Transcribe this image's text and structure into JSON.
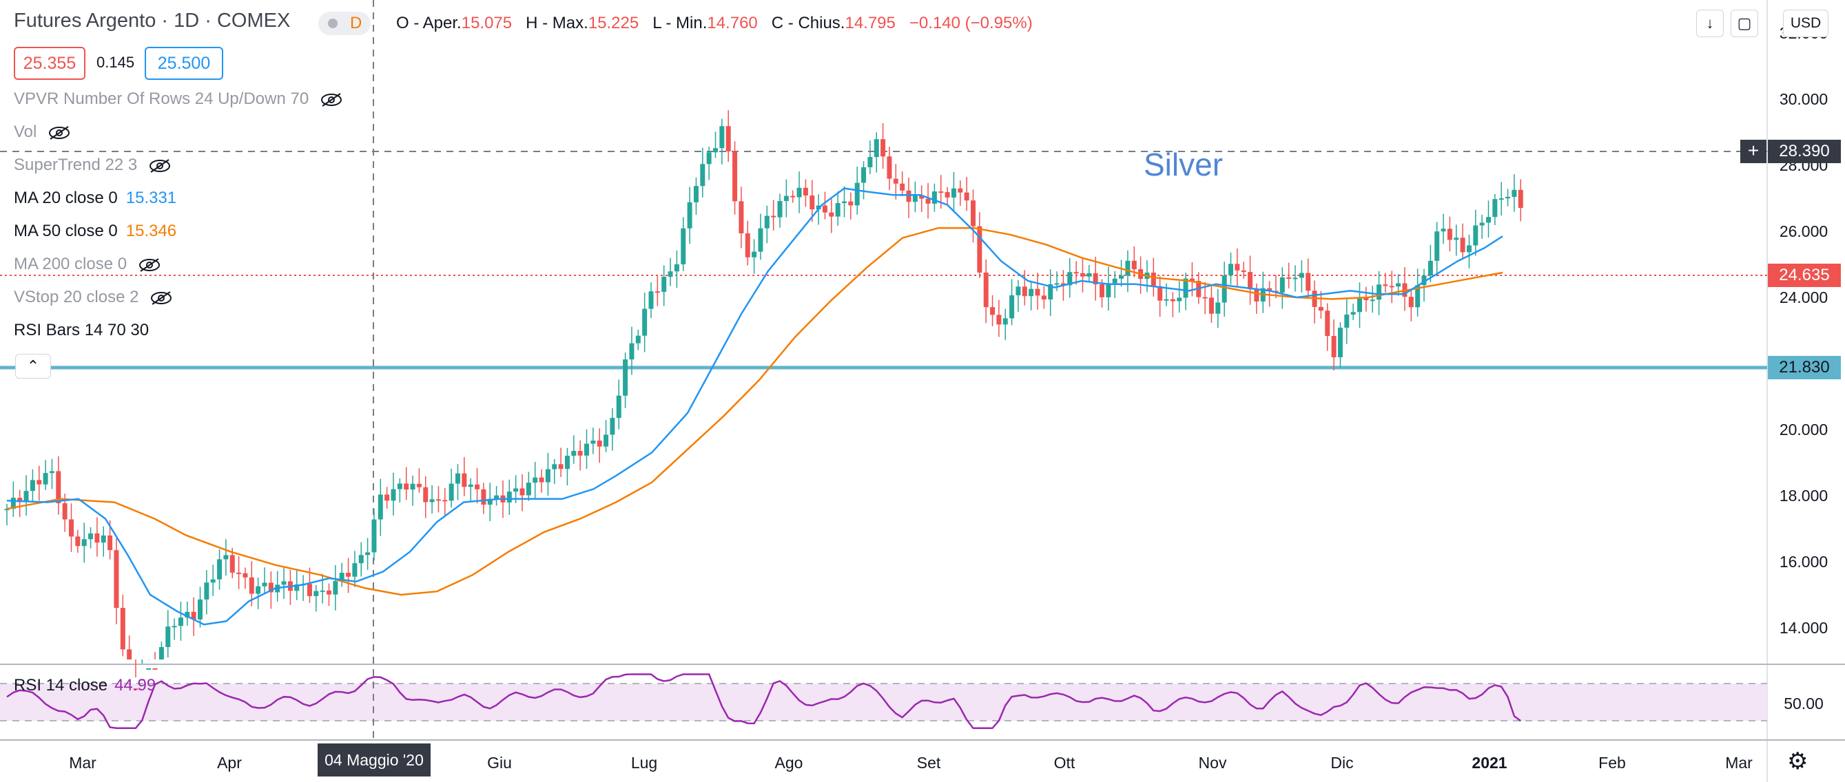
{
  "header": {
    "symbol_title": "Futures Argento · 1D · COMEX",
    "badge_letter": "D",
    "ohlc": {
      "o_label": "O - Aper.",
      "o_value": "15.075",
      "h_label": "H - Max.",
      "h_value": "15.225",
      "l_label": "L - Min.",
      "l_value": "14.760",
      "c_label": "C - Chius.",
      "c_value": "14.795",
      "change": "−0.140 (−0.95%)"
    },
    "bid": "25.355",
    "spread": "0.145",
    "ask": "25.500",
    "currency_button": "USD"
  },
  "indicators": [
    {
      "label": "VPVR Number Of Rows 24 Up/Down 70",
      "value": "",
      "hidden": true
    },
    {
      "label": "Vol",
      "value": "",
      "hidden": true
    },
    {
      "label": "SuperTrend 22 3",
      "value": "",
      "hidden": true
    },
    {
      "label": "MA 20 close 0",
      "value": "15.331",
      "hidden": false
    },
    {
      "label": "MA 50 close 0",
      "value": "15.346",
      "hidden": false
    },
    {
      "label": "MA 200 close 0",
      "value": "",
      "hidden": true
    },
    {
      "label": "VStop 20 close 2",
      "value": "",
      "hidden": true
    },
    {
      "label": "RSI Bars 14 70 30",
      "value": "",
      "hidden": false
    }
  ],
  "annotation_text": "Silver",
  "price_labels": {
    "crosshair": "28.390",
    "last": "24.635",
    "horizontal_line": "21.830"
  },
  "rsi": {
    "label": "RSI 14 close",
    "value": "44.99",
    "axis_label": "50.00"
  },
  "crosshair_date": "04 Maggio '20",
  "colors": {
    "up": "#26a69a",
    "down": "#ef5350",
    "ma20": "#2196f3",
    "ma50": "#f57c00",
    "rsi": "#9c27b0",
    "hline": "#5fb4cc"
  },
  "chart_data": {
    "type": "candlestick",
    "y_ticks": [
      "32.000",
      "30.000",
      "28.000",
      "26.000",
      "24.000",
      "22.000",
      "20.000",
      "18.000",
      "16.000",
      "14.000"
    ],
    "x_ticks": [
      "Mar",
      "Apr",
      "Giu",
      "Lug",
      "Ago",
      "Set",
      "Ott",
      "Nov",
      "Dic",
      "2021",
      "Feb",
      "Mar"
    ],
    "ylim": [
      12.9,
      32.4
    ],
    "hline_value": 21.83,
    "last_value": 24.635,
    "crosshair_value": 28.39,
    "series": [
      {
        "name": "MA 20 close 0",
        "points": [
          [
            0,
            17.85
          ],
          [
            0.045,
            17.8
          ],
          [
            0.08,
            17.9
          ],
          [
            0.11,
            17.3
          ],
          [
            0.135,
            16.2
          ],
          [
            0.16,
            15.0
          ],
          [
            0.19,
            14.5
          ],
          [
            0.22,
            14.1
          ],
          [
            0.245,
            14.2
          ],
          [
            0.27,
            14.8
          ],
          [
            0.3,
            15.2
          ],
          [
            0.33,
            15.3
          ],
          [
            0.36,
            15.5
          ],
          [
            0.39,
            15.4
          ],
          [
            0.42,
            15.7
          ],
          [
            0.45,
            16.3
          ],
          [
            0.48,
            17.2
          ],
          [
            0.51,
            17.8
          ],
          [
            0.55,
            17.9
          ],
          [
            0.58,
            17.9
          ],
          [
            0.62,
            17.9
          ],
          [
            0.655,
            18.2
          ],
          [
            0.68,
            18.6
          ],
          [
            0.72,
            19.3
          ],
          [
            0.76,
            20.5
          ],
          [
            0.79,
            22.0
          ],
          [
            0.82,
            23.5
          ],
          [
            0.85,
            24.8
          ],
          [
            0.88,
            25.8
          ],
          [
            0.91,
            26.8
          ],
          [
            0.935,
            27.3
          ],
          [
            0.96,
            27.2
          ],
          [
            0.99,
            27.1
          ],
          [
            1.02,
            27.1
          ],
          [
            1.05,
            26.8
          ],
          [
            1.08,
            26.0
          ],
          [
            1.11,
            25.1
          ],
          [
            1.14,
            24.5
          ],
          [
            1.17,
            24.3
          ],
          [
            1.2,
            24.5
          ],
          [
            1.23,
            24.4
          ],
          [
            1.26,
            24.4
          ],
          [
            1.29,
            24.3
          ],
          [
            1.32,
            24.2
          ],
          [
            1.35,
            24.4
          ],
          [
            1.38,
            24.3
          ],
          [
            1.41,
            24.2
          ],
          [
            1.44,
            24.0
          ],
          [
            1.47,
            24.1
          ],
          [
            1.5,
            24.2
          ],
          [
            1.53,
            24.1
          ],
          [
            1.56,
            24.1
          ],
          [
            1.59,
            24.6
          ],
          [
            1.62,
            25.1
          ],
          [
            1.65,
            25.5
          ],
          [
            1.67,
            25.85
          ]
        ]
      },
      {
        "name": "MA 50 close 0",
        "points": [
          [
            0,
            17.6
          ],
          [
            0.06,
            17.9
          ],
          [
            0.12,
            17.8
          ],
          [
            0.165,
            17.3
          ],
          [
            0.2,
            16.8
          ],
          [
            0.25,
            16.3
          ],
          [
            0.3,
            15.9
          ],
          [
            0.35,
            15.6
          ],
          [
            0.4,
            15.2
          ],
          [
            0.44,
            15.0
          ],
          [
            0.48,
            15.1
          ],
          [
            0.52,
            15.6
          ],
          [
            0.56,
            16.3
          ],
          [
            0.6,
            16.9
          ],
          [
            0.64,
            17.3
          ],
          [
            0.68,
            17.8
          ],
          [
            0.72,
            18.4
          ],
          [
            0.76,
            19.4
          ],
          [
            0.8,
            20.4
          ],
          [
            0.84,
            21.5
          ],
          [
            0.88,
            22.8
          ],
          [
            0.92,
            23.9
          ],
          [
            0.96,
            24.9
          ],
          [
            1.0,
            25.8
          ],
          [
            1.04,
            26.1
          ],
          [
            1.08,
            26.1
          ],
          [
            1.12,
            25.9
          ],
          [
            1.16,
            25.6
          ],
          [
            1.2,
            25.2
          ],
          [
            1.24,
            24.9
          ],
          [
            1.28,
            24.6
          ],
          [
            1.32,
            24.5
          ],
          [
            1.36,
            24.3
          ],
          [
            1.4,
            24.1
          ],
          [
            1.44,
            24.0
          ],
          [
            1.48,
            23.95
          ],
          [
            1.52,
            24.0
          ],
          [
            1.56,
            24.2
          ],
          [
            1.6,
            24.4
          ],
          [
            1.64,
            24.6
          ],
          [
            1.67,
            24.75
          ]
        ]
      }
    ],
    "candles_summary": "Daily silver futures from Feb 2020 to Jan 2021: low near 12 in March 2020, peak near 29.9 in August 2020, close 24.635 in early January 2021",
    "rsi_band": [
      30,
      70
    ]
  }
}
